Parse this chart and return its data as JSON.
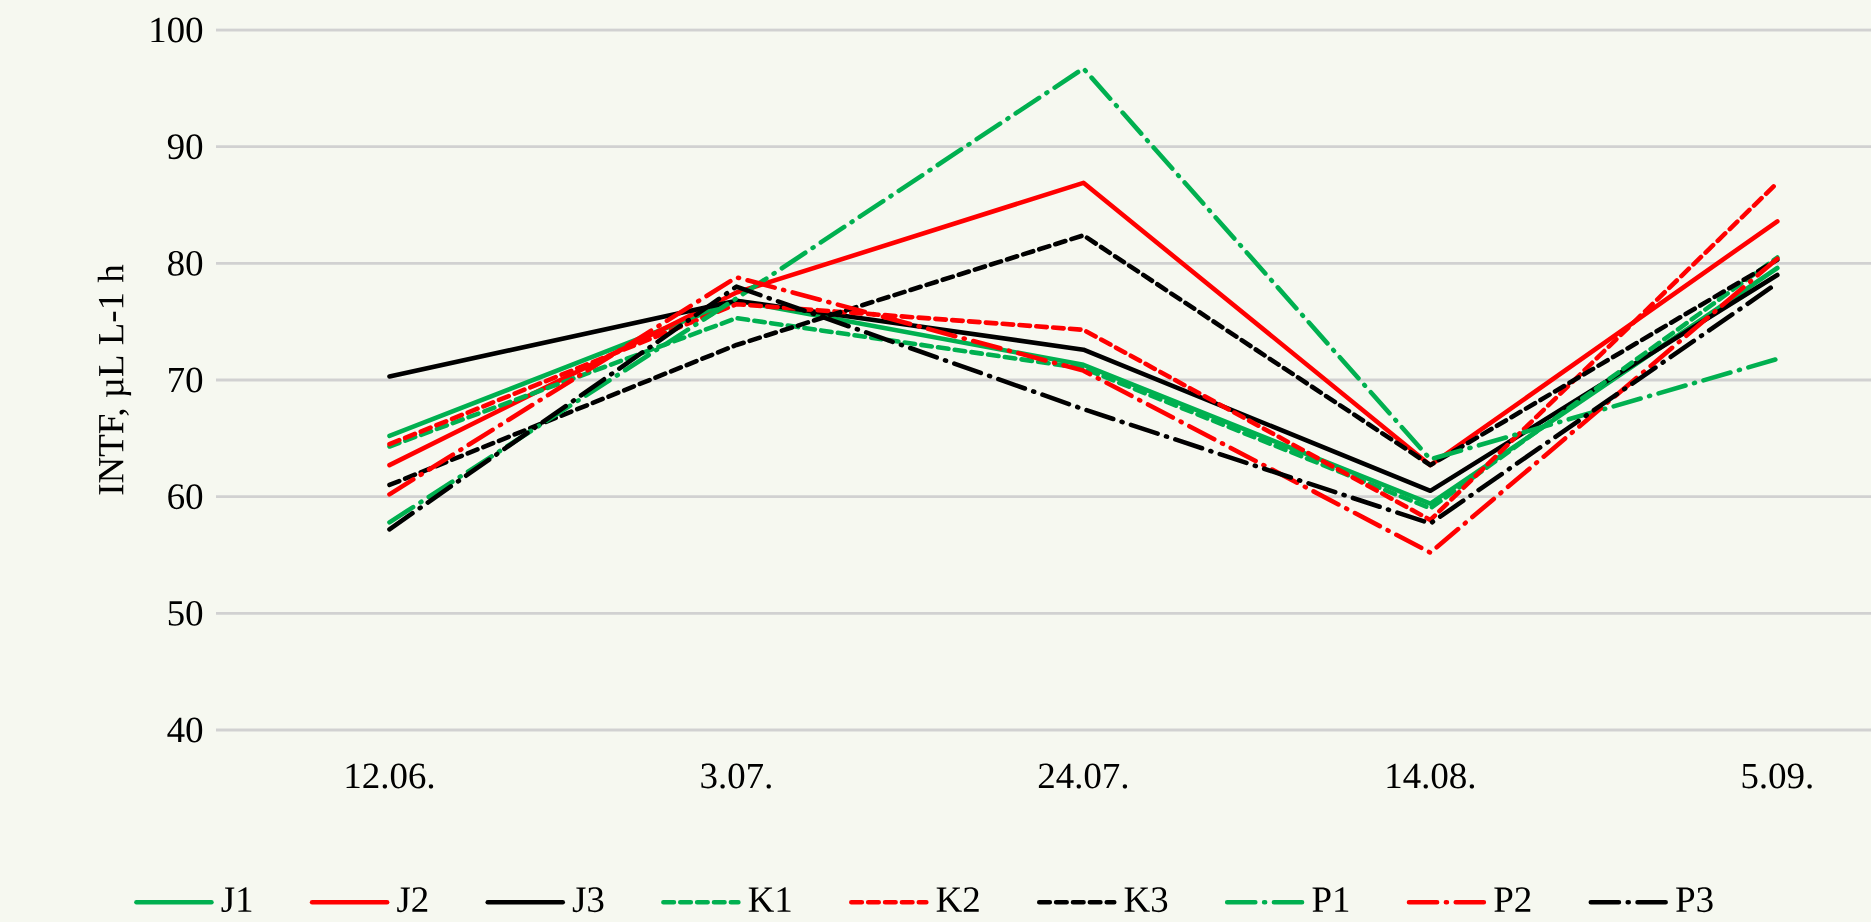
{
  "chart_data": {
    "type": "line",
    "ylabel": "INTF, µL L-1 h",
    "categories": [
      "12.06.",
      "3.07.",
      "24.07.",
      "14.08.",
      "5.09."
    ],
    "ylim": [
      40,
      100
    ],
    "yticks": [
      40,
      50,
      60,
      70,
      80,
      90,
      100
    ],
    "grid": "y",
    "legend": "bottom",
    "marker": "none",
    "series": [
      {
        "name": "J1",
        "color": "#00b050",
        "line_style": "solid",
        "values": [
          65.2,
          76.8,
          71.3,
          59.4,
          79.6
        ]
      },
      {
        "name": "J2",
        "color": "#ff0000",
        "line_style": "solid",
        "values": [
          62.7,
          77.5,
          86.9,
          62.7,
          83.6
        ]
      },
      {
        "name": "J3",
        "color": "#000000",
        "line_style": "solid",
        "values": [
          70.3,
          76.8,
          72.6,
          60.5,
          79.0
        ]
      },
      {
        "name": "K1",
        "color": "#00b050",
        "line_style": "dashed",
        "values": [
          64.3,
          75.3,
          71.0,
          59.0,
          80.5
        ]
      },
      {
        "name": "K2",
        "color": "#ff0000",
        "line_style": "dashed",
        "values": [
          64.5,
          76.5,
          74.3,
          58.0,
          86.9
        ]
      },
      {
        "name": "K3",
        "color": "#000000",
        "line_style": "dashed",
        "values": [
          61.0,
          73.0,
          82.4,
          62.7,
          80.3
        ]
      },
      {
        "name": "P1",
        "color": "#00b050",
        "line_style": "dashdot",
        "values": [
          57.8,
          77.0,
          96.7,
          63.2,
          71.8
        ]
      },
      {
        "name": "P2",
        "color": "#ff0000",
        "line_style": "dashdot",
        "values": [
          60.2,
          78.8,
          70.8,
          55.2,
          80.4
        ]
      },
      {
        "name": "P3",
        "color": "#000000",
        "line_style": "dashdot",
        "values": [
          57.2,
          78.0,
          67.5,
          57.7,
          78.3
        ]
      }
    ]
  }
}
